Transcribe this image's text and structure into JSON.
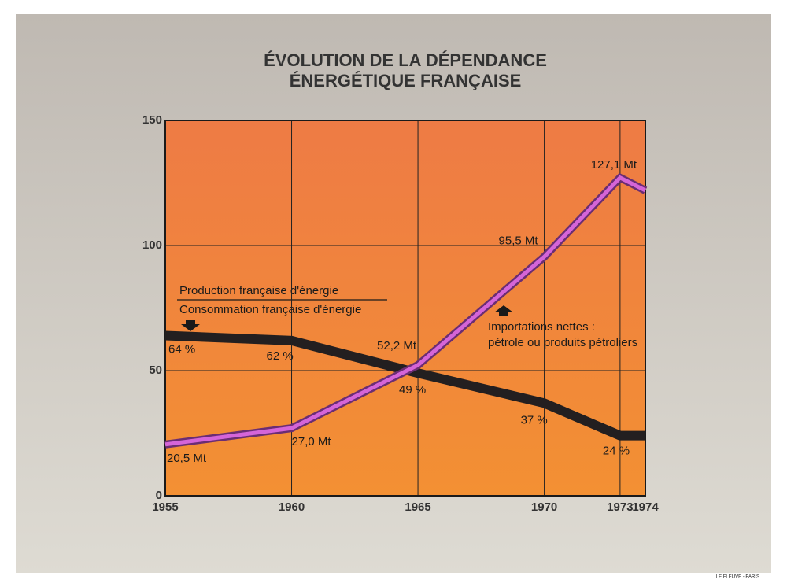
{
  "chart_data": {
    "type": "line",
    "title": [
      "ÉVOLUTION DE LA DÉPENDANCE",
      "ÉNERGÉTIQUE FRANÇAISE"
    ],
    "x": [
      1955,
      1960,
      1965,
      1970,
      1973,
      1974
    ],
    "xlim": [
      1955,
      1974
    ],
    "xticks": [
      1955,
      1960,
      1965,
      1970,
      1973,
      1974
    ],
    "ylim": [
      0,
      150
    ],
    "yticks": [
      0,
      50,
      100,
      150
    ],
    "grid": true,
    "series": [
      {
        "name": [
          "Importations nettes :",
          "pétrole ou produits pétroliers"
        ],
        "color": "#d565d8",
        "values": [
          20.5,
          27.0,
          52.2,
          95.5,
          127.1,
          122
        ],
        "value_labels": [
          "20,5 Mt",
          "27,0 Mt",
          "52,2 Mt",
          "95,5 Mt",
          "127,1 Mt",
          null
        ]
      },
      {
        "name": [
          "Production française d'énergie",
          "Consommation française d'énergie"
        ],
        "color": "#231f20",
        "values": [
          64,
          62,
          49,
          37,
          24,
          24
        ],
        "value_labels": [
          "64 %",
          "62 %",
          "49 %",
          "37 %",
          "24 %",
          null
        ]
      }
    ],
    "credit": "LE FLEUVE - PARIS"
  }
}
